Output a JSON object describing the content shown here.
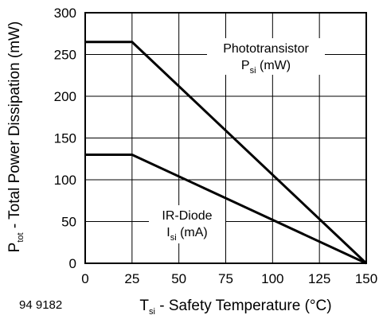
{
  "figure_id": "94 9182",
  "chart_data": {
    "type": "line",
    "x_axis": {
      "label_main": "T",
      "label_sub": "si",
      "label_rest": " - Safety Temperature (°C)",
      "min": 0,
      "max": 150,
      "ticks": [
        0,
        25,
        50,
        75,
        100,
        125,
        150
      ]
    },
    "y_axis": {
      "label_main": "P",
      "label_sub": "tot",
      "label_rest": " - Total Power Dissipation (mW)",
      "min": 0,
      "max": 300,
      "ticks": [
        0,
        50,
        100,
        150,
        200,
        250,
        300
      ]
    },
    "grid": true,
    "series": [
      {
        "line1": "Phototransistor",
        "line2_main": "P",
        "line2_sub": "si",
        "line2_rest": " (mW)",
        "x": [
          0,
          25,
          150
        ],
        "y": [
          265,
          265,
          0
        ]
      },
      {
        "line1": "IR-Diode",
        "line2_main": "I",
        "line2_sub": "si",
        "line2_rest": " (mA)",
        "x": [
          0,
          25,
          150
        ],
        "y": [
          130,
          130,
          0
        ]
      }
    ]
  }
}
